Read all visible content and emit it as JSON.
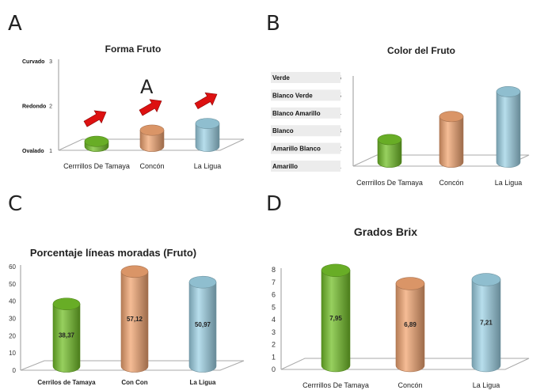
{
  "panels": [
    "A",
    "B",
    "C",
    "D"
  ],
  "colors": {
    "green": "#74c02a",
    "orange": "#f2a572",
    "blue": "#9fd3e6",
    "arrow": "#dd1111"
  },
  "chart_data": [
    {
      "panel": "A",
      "type": "bar",
      "title": "Forma   Fruto",
      "categories": [
        "Cerrrillos De Tamaya",
        "Concón",
        "La Ligua"
      ],
      "values": [
        1.2,
        1.45,
        1.6
      ],
      "ylim": [
        1,
        3
      ],
      "yticks": [
        "1",
        "2",
        "3"
      ],
      "ytick_labels": [
        "Ovalado",
        "Redondo",
        "Curvado"
      ],
      "annotation": "A",
      "grid": false
    },
    {
      "panel": "B",
      "type": "bar",
      "title": "Color del  Fruto",
      "categories": [
        "Cerrrillos De Tamaya",
        "Concón",
        "La Ligua"
      ],
      "values": [
        2.5,
        3.8,
        5.2
      ],
      "ylim": [
        1,
        6
      ],
      "yticks": [
        "1",
        "2",
        "3",
        "4",
        "5",
        "6"
      ],
      "ytick_labels": [
        "Amarillo",
        "Amarillo Blanco",
        "Blanco",
        "Blanco Amarillo",
        "Blanco Verde",
        "Verde"
      ],
      "grid": false
    },
    {
      "panel": "C",
      "type": "bar",
      "title": "Porcentaje líneas moradas (Fruto)",
      "categories": [
        "Cerrilos de Tamaya",
        "Con Con",
        "La Ligua"
      ],
      "values": [
        38.37,
        57.12,
        50.97
      ],
      "data_labels": [
        "38,37",
        "57,12",
        "50,97"
      ],
      "ylim": [
        0,
        60
      ],
      "yticks": [
        "0",
        "10",
        "20",
        "30",
        "40",
        "50",
        "60"
      ],
      "grid": false
    },
    {
      "panel": "D",
      "type": "bar",
      "title": "Grados Brix",
      "categories": [
        "Cerrrillos De Tamaya",
        "Concón",
        "La Ligua"
      ],
      "values": [
        7.95,
        6.89,
        7.21
      ],
      "data_labels": [
        "7,95",
        "6,89",
        "7,21"
      ],
      "ylim": [
        0,
        8
      ],
      "yticks": [
        "0",
        "1",
        "2",
        "3",
        "4",
        "5",
        "6",
        "7",
        "8"
      ],
      "grid": false
    }
  ]
}
